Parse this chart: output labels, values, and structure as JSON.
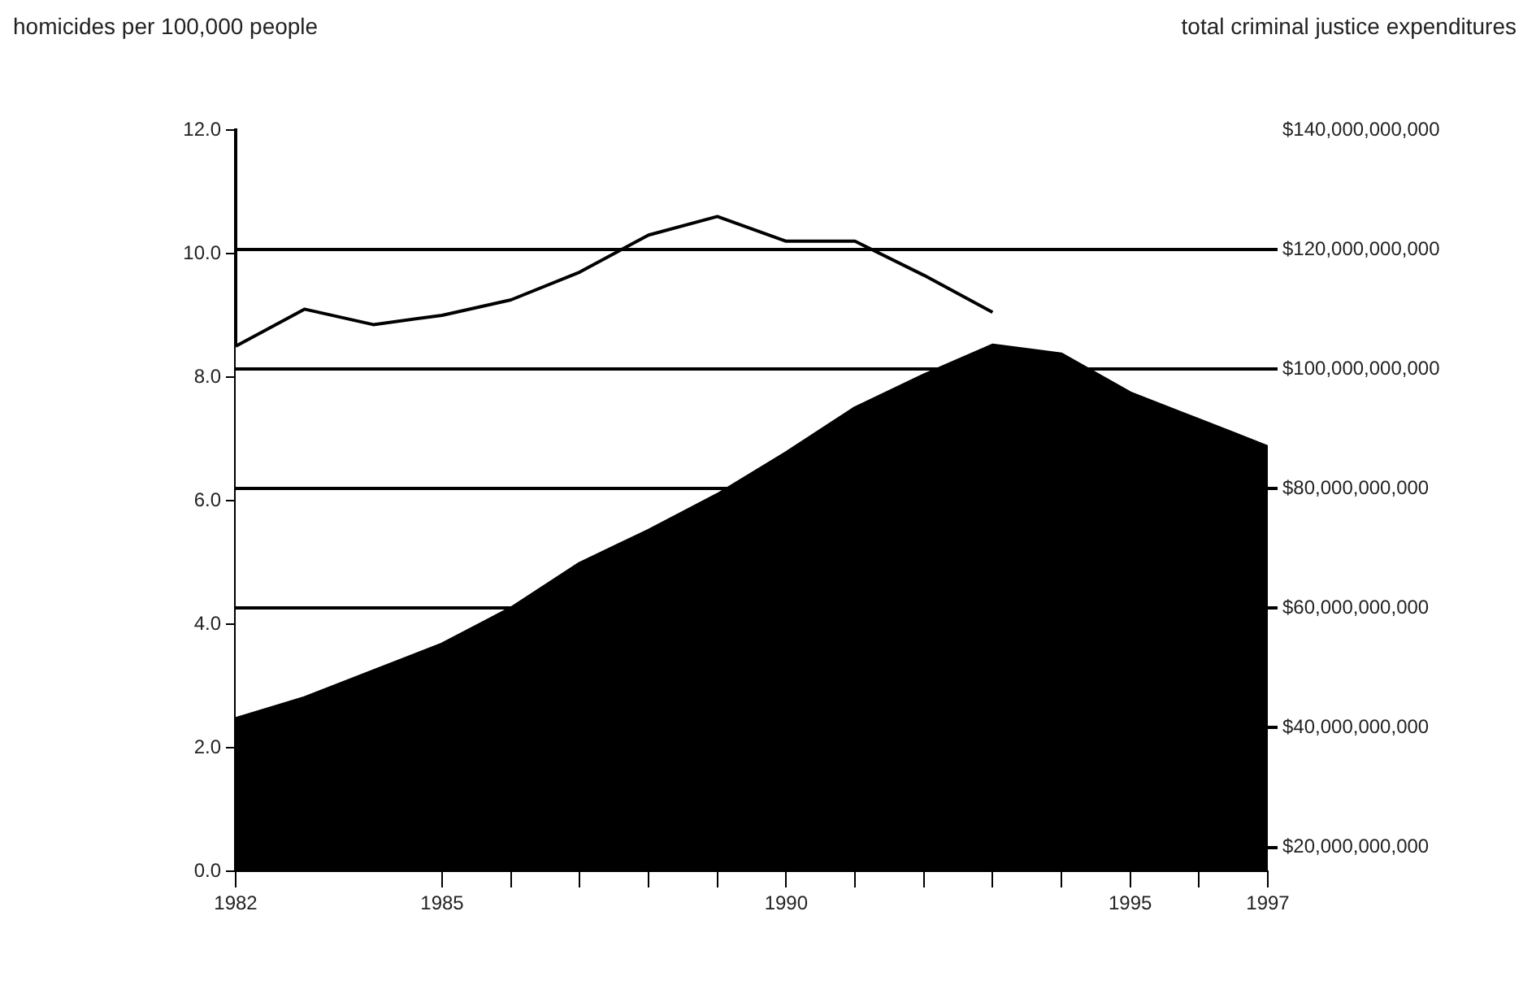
{
  "chart_data": {
    "type": "area",
    "ylabel": "homicides per 100,000 people",
    "y2label": "total criminal justice expenditures",
    "x": [
      1982,
      1983,
      1984,
      1985,
      1986,
      1987,
      1988,
      1989,
      1990,
      1991,
      1992,
      1993,
      1994,
      1995,
      1996,
      1997
    ],
    "series": [
      {
        "color": "#ffffff",
        "values": [
          8.5,
          9.1,
          8.85,
          9.0,
          9.25,
          9.7,
          10.3,
          10.6,
          10.2,
          10.2,
          9.65,
          9.05,
          null,
          null,
          null,
          null
        ]
      },
      {
        "color": "#000000",
        "axis": "y2",
        "values": [
          41500000000,
          45000000000,
          49500000000,
          54000000000,
          60000000000,
          67500000000,
          73000000000,
          79000000000,
          86000000000,
          93500000000,
          99000000000,
          104000000000,
          102500000000,
          96000000000,
          91500000000,
          87000000000
        ]
      }
    ],
    "xlim": [
      1982,
      1997
    ],
    "xticks": [
      1982,
      1985,
      {
        "value": 1986,
        "label": null
      },
      {
        "value": 1987,
        "label": null
      },
      {
        "value": 1988,
        "label": null
      },
      {
        "value": 1989,
        "label": null
      },
      1990,
      {
        "value": 1991,
        "label": null
      },
      {
        "value": 1992,
        "label": null
      },
      {
        "value": 1993,
        "label": null
      },
      {
        "value": 1994,
        "label": null
      },
      1995,
      {
        "value": 1996,
        "label": null
      },
      1997
    ],
    "ylim": [
      0,
      12
    ],
    "yticks": [
      {
        "value": 0,
        "label": "0.0"
      },
      {
        "value": 2,
        "label": "2.0"
      },
      {
        "value": 4,
        "label": "4.0"
      },
      {
        "value": 6,
        "label": "6.0"
      },
      {
        "value": 8,
        "label": "8.0"
      },
      {
        "value": 10,
        "label": "10.0"
      },
      {
        "value": 12,
        "label": "12.0"
      }
    ],
    "y2lim": [
      16000000000,
      140000000000
    ],
    "y2ticks": [
      {
        "value": 20000000000,
        "label": "$20,000,000,000"
      },
      {
        "value": 40000000000,
        "label": "$40,000,000,000"
      },
      {
        "value": 60000000000,
        "label": "$60,000,000,000"
      },
      {
        "value": 80000000000,
        "label": "$80,000,000,000"
      },
      {
        "value": 100000000000,
        "label": "$100,000,000,000"
      },
      {
        "value": 120000000000,
        "label": "$120,000,000,000"
      },
      {
        "value": 140000000000,
        "label": "$140,000,000,000"
      }
    ],
    "grid": "y2",
    "legend": false,
    "marker": "none"
  }
}
